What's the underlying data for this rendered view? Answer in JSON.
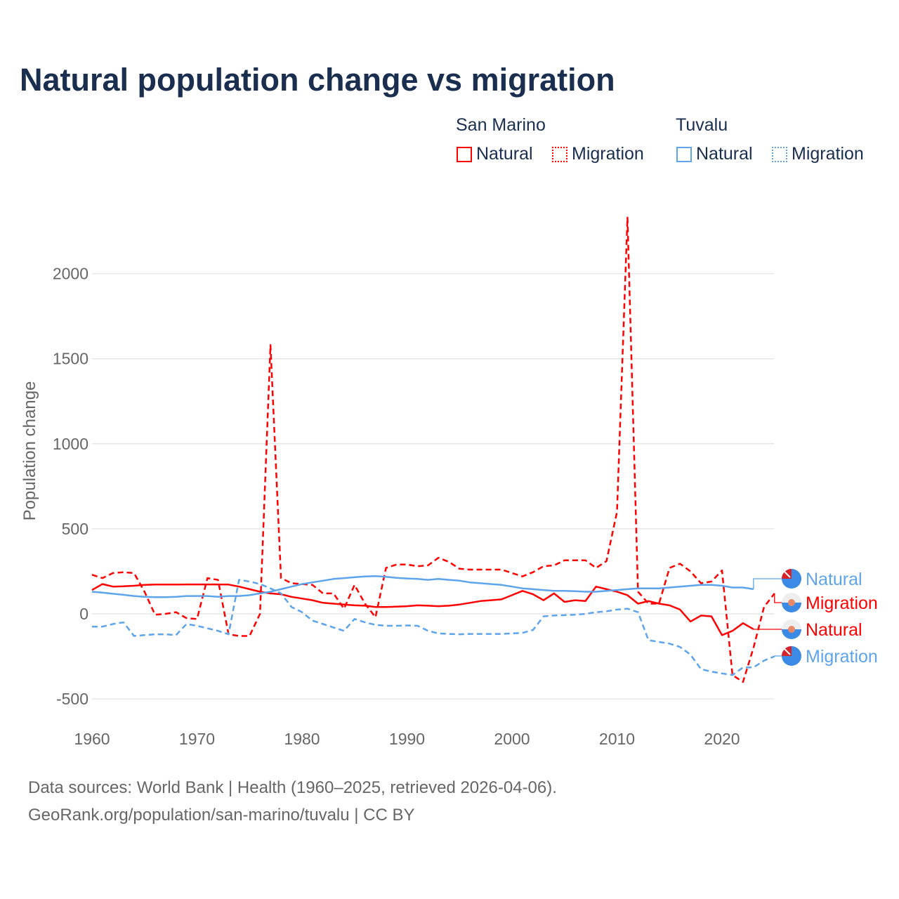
{
  "title": "Natural population change vs migration",
  "legend": {
    "groups": [
      {
        "name": "San Marino",
        "items": [
          {
            "label": "Natural",
            "style": "solid"
          },
          {
            "label": "Migration",
            "style": "dotted"
          }
        ],
        "color": "#ff0000"
      },
      {
        "name": "Tuvalu",
        "items": [
          {
            "label": "Natural",
            "style": "solid"
          },
          {
            "label": "Migration",
            "style": "dotted"
          }
        ],
        "color": "#5ea4ea"
      }
    ]
  },
  "footer": {
    "line1": "Data sources: World Bank | Health (1960–2025, retrieved 2026-04-06).",
    "line2": "GeoRank.org/population/san-marino/tuvalu | CC BY"
  },
  "chart_data": {
    "type": "line",
    "title": "Natural population change vs migration",
    "xlabel": "",
    "ylabel": "Population change",
    "xlim": [
      1960,
      2025
    ],
    "ylim": [
      -500,
      2350
    ],
    "xticks": [
      1960,
      1970,
      1980,
      1990,
      2000,
      2010,
      2020
    ],
    "yticks": [
      -500,
      0,
      500,
      1000,
      1500,
      2000
    ],
    "grid": true,
    "legend_position": "top-right",
    "series": [
      {
        "name": "San Marino Natural",
        "end_label": "Natural",
        "color": "#ff0000",
        "dash": false,
        "start": 1960,
        "values": [
          140,
          175,
          160,
          162,
          165,
          170,
          172,
          172,
          172,
          173,
          173,
          173,
          173,
          172,
          160,
          145,
          130,
          120,
          115,
          100,
          90,
          80,
          65,
          60,
          55,
          50,
          48,
          40,
          40,
          42,
          45,
          50,
          48,
          45,
          48,
          55,
          65,
          75,
          80,
          85,
          110,
          135,
          115,
          80,
          120,
          70,
          80,
          75,
          160,
          145,
          130,
          110,
          60,
          75,
          60,
          50,
          25,
          -45,
          -10,
          -15,
          -125,
          -100,
          -55,
          -90
        ]
      },
      {
        "name": "San Marino Migration",
        "end_label": "Migration",
        "color": "#ff0000",
        "dash": true,
        "start": 1960,
        "values": [
          230,
          210,
          240,
          245,
          240,
          130,
          -5,
          0,
          10,
          -25,
          -30,
          210,
          200,
          -120,
          -130,
          -130,
          0,
          1580,
          210,
          180,
          175,
          170,
          120,
          120,
          30,
          170,
          60,
          -20,
          270,
          290,
          290,
          280,
          285,
          330,
          305,
          265,
          260,
          260,
          260,
          260,
          240,
          220,
          245,
          280,
          285,
          315,
          315,
          315,
          270,
          310,
          600,
          2330,
          130,
          60,
          60,
          270,
          295,
          250,
          180,
          190,
          255,
          -360,
          -400,
          -200,
          40,
          120
        ]
      },
      {
        "name": "Tuvalu Natural",
        "end_label": "Natural",
        "color": "#5ea4ea",
        "dash": false,
        "start": 1960,
        "values": [
          130,
          125,
          118,
          112,
          105,
          100,
          98,
          98,
          100,
          105,
          105,
          105,
          100,
          105,
          105,
          110,
          120,
          130,
          145,
          160,
          175,
          185,
          195,
          205,
          210,
          215,
          220,
          222,
          218,
          212,
          208,
          205,
          200,
          205,
          200,
          195,
          185,
          180,
          175,
          170,
          160,
          150,
          145,
          140,
          135,
          135,
          133,
          130,
          130,
          135,
          140,
          145,
          150,
          150,
          150,
          155,
          160,
          165,
          170,
          170,
          165,
          155,
          155,
          145
        ]
      },
      {
        "name": "Tuvalu Migration",
        "end_label": "Migration",
        "color": "#5ea4ea",
        "dash": true,
        "start": 1960,
        "values": [
          -75,
          -75,
          -60,
          -50,
          -130,
          -125,
          -120,
          -120,
          -125,
          -60,
          -70,
          -85,
          -100,
          -120,
          200,
          190,
          175,
          150,
          120,
          40,
          10,
          -40,
          -60,
          -80,
          -100,
          -30,
          -50,
          -65,
          -70,
          -70,
          -68,
          -70,
          -100,
          -115,
          -118,
          -120,
          -118,
          -118,
          -118,
          -118,
          -115,
          -112,
          -95,
          -15,
          -10,
          -8,
          -5,
          0,
          10,
          15,
          25,
          30,
          10,
          -155,
          -165,
          -175,
          -195,
          -240,
          -325,
          -340,
          -350,
          -360,
          -315,
          -315,
          -275,
          -250
        ]
      }
    ]
  }
}
